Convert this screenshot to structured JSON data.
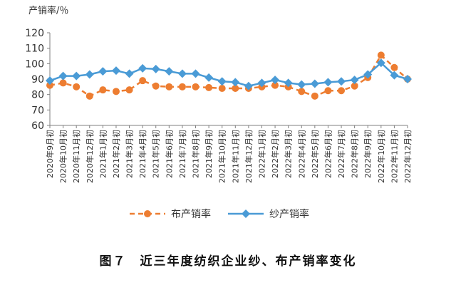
{
  "chart_data": {
    "type": "line",
    "ylabel": "产销率/％",
    "ylim": [
      60,
      120
    ],
    "yticks": [
      60,
      70,
      80,
      90,
      100,
      110,
      120
    ],
    "grid": false,
    "legend_position": "bottom",
    "categories": [
      "2020年9月初",
      "2020年10月初",
      "2020年11月初",
      "2020年12月初",
      "2021年1月初",
      "2021年2月初",
      "2021年3月初",
      "2021年4月初",
      "2021年5月初",
      "2021年6月初",
      "2021年7月初",
      "2021年8月初",
      "2021年9月初",
      "2021年10月初",
      "2021年11月初",
      "2021年12月初",
      "2022年1月初",
      "2022年2月初",
      "2022年3月初",
      "2022年4月初",
      "2022年5月初",
      "2022年6月初",
      "2022年7月初",
      "2022年8月初",
      "2022年9月初",
      "2022年10月初",
      "2022年11月初",
      "2022年12月初"
    ],
    "series": [
      {
        "name": "布产销率",
        "color": "#ED7D31",
        "style": "dashed-line-circle-markers",
        "values": [
          86,
          87.5,
          85,
          79,
          83,
          82,
          83,
          89,
          85.5,
          85,
          85,
          85,
          84.5,
          84,
          84,
          84,
          85,
          86,
          85,
          82,
          79,
          82.5,
          82.5,
          85.5,
          91,
          105.5,
          97.5,
          90
        ]
      },
      {
        "name": "纱产销率",
        "color": "#4A9BD6",
        "style": "solid-line-diamond-markers",
        "values": [
          89,
          92,
          92,
          93,
          95,
          95.5,
          93.5,
          97,
          96.5,
          95,
          93.5,
          93.5,
          91,
          88.5,
          88,
          85.5,
          87.5,
          89.5,
          87.5,
          86.5,
          87,
          88,
          88.5,
          89.5,
          93,
          100.5,
          92.5,
          90
        ]
      }
    ]
  },
  "caption": "图７　近三年度纺织企业纱、布产销率变化"
}
